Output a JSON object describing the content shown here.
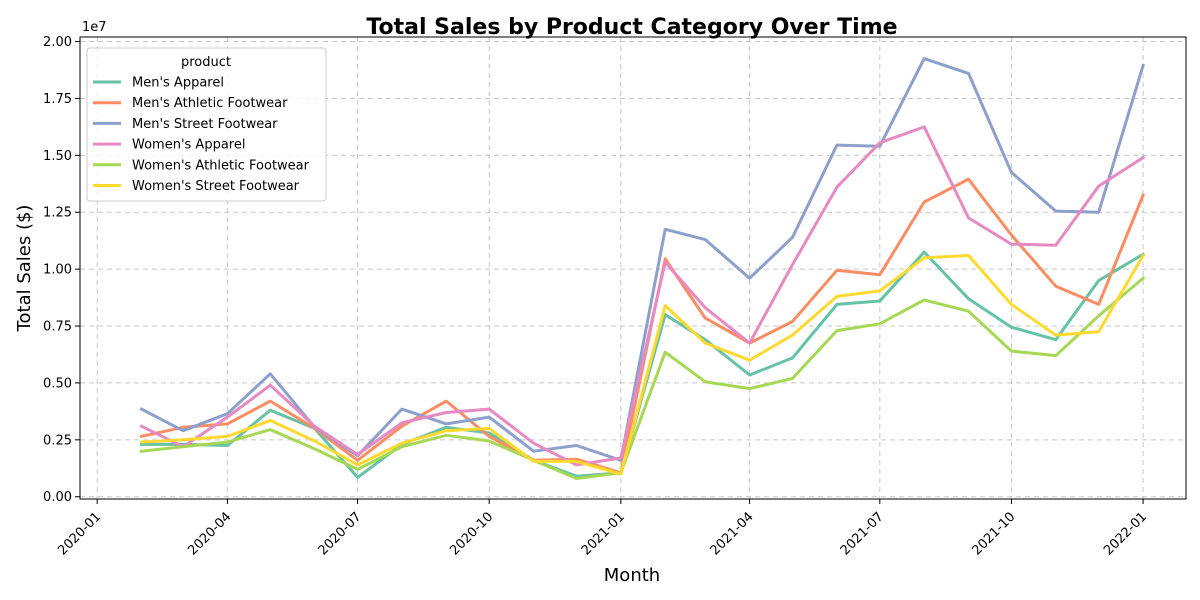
{
  "chart_data": {
    "type": "line",
    "title": "Total Sales by Product Category Over Time",
    "xlabel": "Month",
    "ylabel": "Total Sales ($)",
    "y_offset_text": "1e7",
    "x_ticks": [
      "2020-01",
      "2020-04",
      "2020-07",
      "2020-10",
      "2021-01",
      "2021-04",
      "2021-07",
      "2021-10",
      "2022-01"
    ],
    "y_ticks": [
      "0.00",
      "0.25",
      "0.50",
      "0.75",
      "1.00",
      "1.25",
      "1.50",
      "1.75",
      "2.00"
    ],
    "y_tick_values": [
      0,
      2500000,
      5000000,
      7500000,
      10000000,
      12500000,
      15000000,
      17500000,
      20000000
    ],
    "xlim": [
      "2019-12-20",
      "2022-01-31"
    ],
    "ylim": [
      -100000,
      20200000
    ],
    "grid": true,
    "legend_position": "upper-left",
    "legend_title": "product",
    "x": [
      "2020-02-01",
      "2020-03-01",
      "2020-04-01",
      "2020-05-01",
      "2020-06-01",
      "2020-07-01",
      "2020-08-01",
      "2020-09-01",
      "2020-10-01",
      "2020-11-01",
      "2020-12-01",
      "2021-01-01",
      "2021-02-01",
      "2021-03-01",
      "2021-04-01",
      "2021-05-01",
      "2021-06-01",
      "2021-07-01",
      "2021-08-01",
      "2021-09-01",
      "2021-10-01",
      "2021-11-01",
      "2021-12-01",
      "2022-01-01"
    ],
    "series": [
      {
        "name": "Men's Apparel",
        "color": "#66c2a5",
        "values": [
          2300000,
          2300000,
          2250000,
          3800000,
          3000000,
          850000,
          2300000,
          3050000,
          2800000,
          1600000,
          900000,
          1050000,
          8000000,
          6900000,
          5350000,
          6100000,
          8450000,
          8600000,
          10750000,
          8700000,
          7450000,
          6900000,
          9500000,
          10650000
        ]
      },
      {
        "name": "Men's Athletic Footwear",
        "color": "#fc8d62",
        "values": [
          2650000,
          3050000,
          3200000,
          4200000,
          3000000,
          1600000,
          3100000,
          4200000,
          2650000,
          1600000,
          1650000,
          1050000,
          10450000,
          7850000,
          6750000,
          7700000,
          9950000,
          9750000,
          12950000,
          13950000,
          11500000,
          9250000,
          8450000,
          13250000
        ]
      },
      {
        "name": "Men's Street Footwear",
        "color": "#8da0cb",
        "values": [
          3850000,
          2900000,
          3650000,
          5400000,
          3050000,
          1800000,
          3850000,
          3200000,
          3500000,
          2000000,
          2250000,
          1600000,
          11750000,
          11300000,
          9600000,
          11400000,
          15450000,
          15400000,
          19250000,
          18600000,
          14250000,
          12550000,
          12500000,
          18950000
        ]
      },
      {
        "name": "Women's Apparel",
        "color": "#e78ac3",
        "values": [
          3100000,
          2200000,
          3500000,
          4900000,
          3100000,
          1850000,
          3250000,
          3700000,
          3850000,
          2350000,
          1400000,
          1700000,
          10300000,
          8300000,
          6750000,
          10200000,
          13600000,
          15550000,
          16250000,
          12250000,
          11100000,
          11050000,
          13650000,
          14900000
        ]
      },
      {
        "name": "Women's Athletic Footwear",
        "color": "#a6d854",
        "values": [
          2000000,
          2200000,
          2400000,
          2950000,
          2100000,
          1200000,
          2200000,
          2700000,
          2450000,
          1600000,
          800000,
          1050000,
          6350000,
          5050000,
          4750000,
          5200000,
          7300000,
          7600000,
          8650000,
          8150000,
          6400000,
          6200000,
          7950000,
          9600000
        ]
      },
      {
        "name": "Women's Street Footwear",
        "color": "#ffd92f",
        "values": [
          2400000,
          2500000,
          2650000,
          3350000,
          2450000,
          1400000,
          2350000,
          2900000,
          3000000,
          1550000,
          1550000,
          1000000,
          8400000,
          6750000,
          6000000,
          7100000,
          8800000,
          9050000,
          10500000,
          10600000,
          8450000,
          7100000,
          7250000,
          10600000
        ]
      }
    ]
  }
}
